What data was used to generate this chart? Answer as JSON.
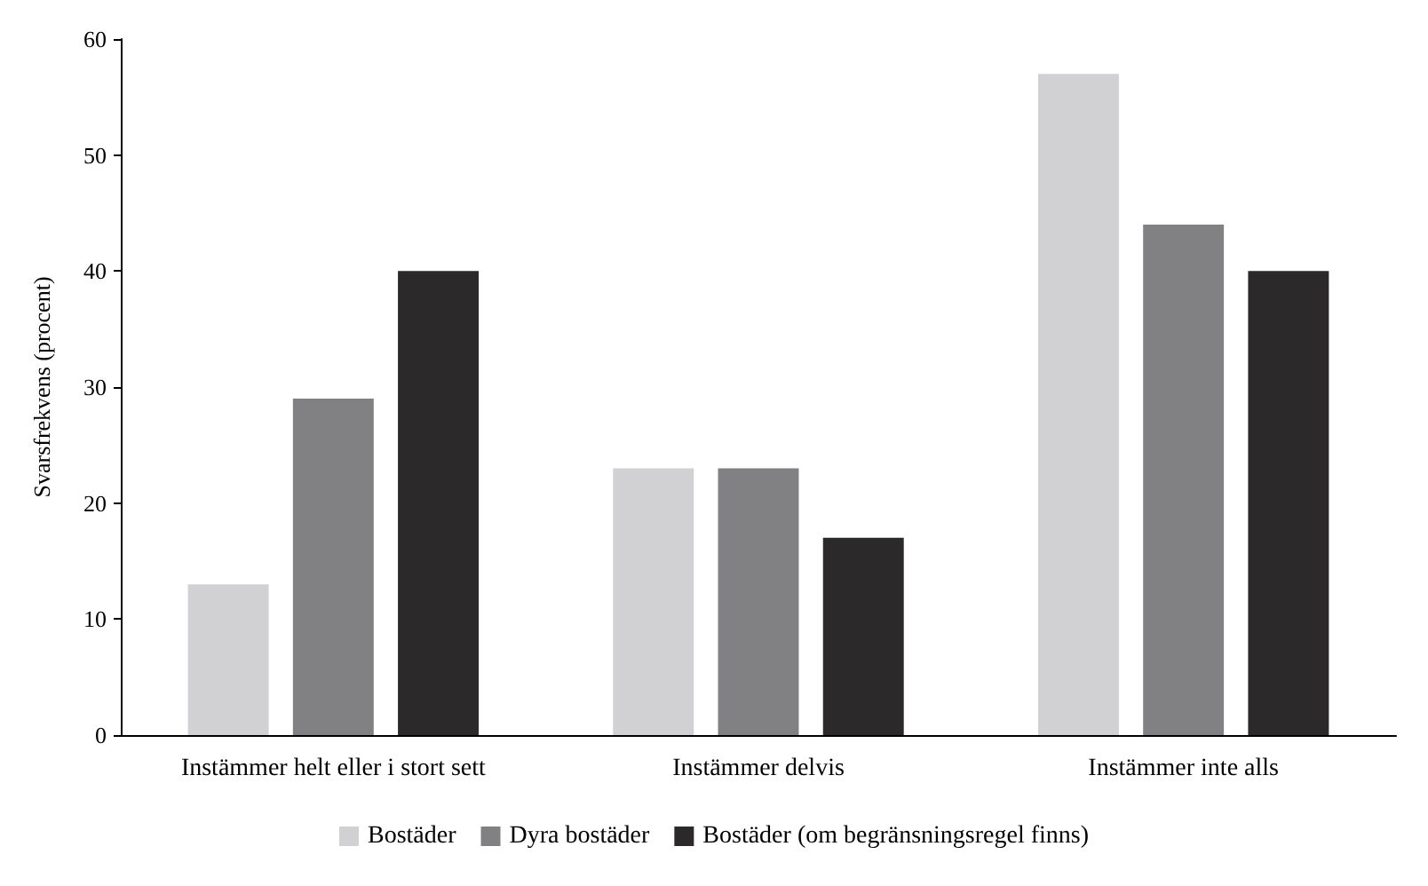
{
  "chart_data": {
    "type": "bar",
    "ylabel": "Svarsfrekvens (procent)",
    "categories": [
      "Instämmer helt eller i stort sett",
      "Instämmer delvis",
      "Instämmer inte alls"
    ],
    "series": [
      {
        "name": "Bostäder",
        "color": "#d1d1d3",
        "values": [
          13,
          23,
          57
        ]
      },
      {
        "name": "Dyra bostäder",
        "color": "#818184",
        "values": [
          29,
          23,
          44
        ]
      },
      {
        "name": "Bostäder (om begränsningsregel finns)",
        "color": "#2b292a",
        "values": [
          40,
          17,
          40
        ]
      }
    ],
    "ylim": [
      0,
      60
    ],
    "yticks": [
      0,
      10,
      20,
      30,
      40,
      50,
      60
    ],
    "grid": false,
    "legend": "bottom"
  }
}
